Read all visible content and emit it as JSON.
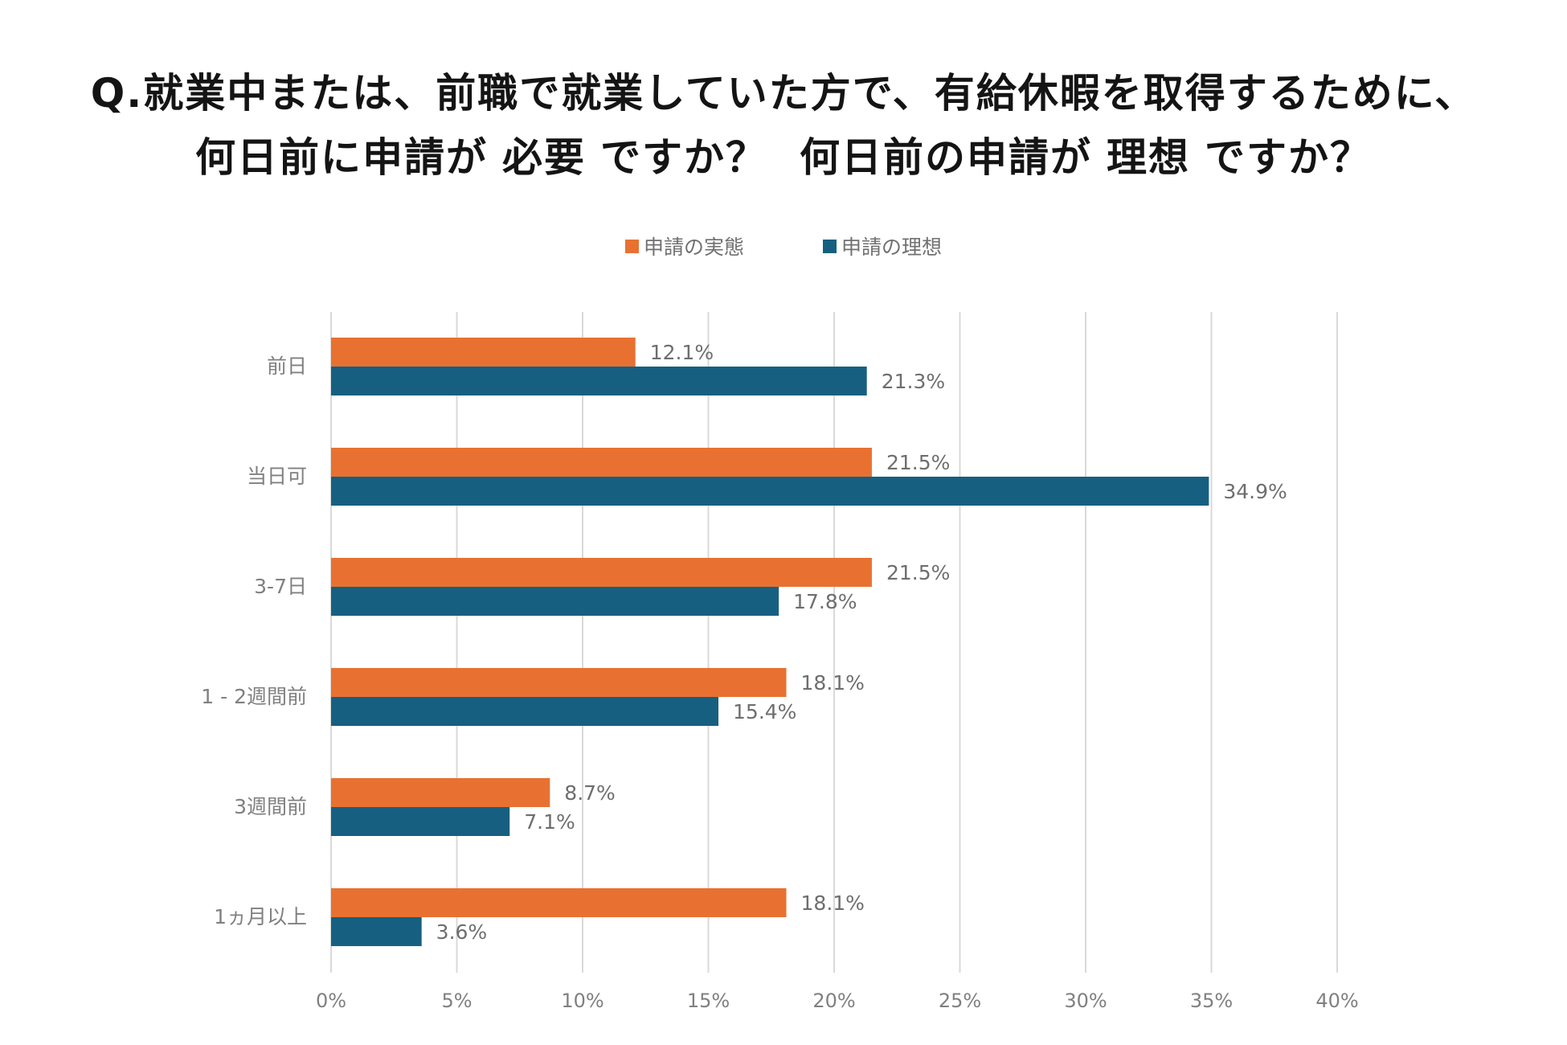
{
  "header": {
    "line1": "Q.就業中または、前職で就業していた方で、有給休暇を取得するために、",
    "line2_a": "何日前に申請が",
    "line2_hl1": "必要",
    "line2_b": "ですか？",
    "line2_c": "何日前の申請が",
    "line2_hl2": "理想",
    "line2_d": "ですか？"
  },
  "colors": {
    "actual": "#e87131",
    "ideal": "#175f80",
    "grid": "#d9d9d9"
  },
  "chart_data": {
    "type": "bar",
    "orientation": "horizontal",
    "categories": [
      "前日",
      "当日可",
      "3-7日",
      "1 - 2週間前",
      "3週間前",
      "1ヵ月以上"
    ],
    "series": [
      {
        "name": "申請の実態",
        "values": [
          12.1,
          21.5,
          21.5,
          18.1,
          8.7,
          18.1
        ]
      },
      {
        "name": "申請の理想",
        "values": [
          21.3,
          34.9,
          17.8,
          15.4,
          7.1,
          3.6
        ]
      }
    ],
    "value_labels": {
      "申請の実態": [
        "12.1%",
        "21.5%",
        "21.5%",
        "18.1%",
        "8.7%",
        "18.1%"
      ],
      "申請の理想": [
        "21.3%",
        "34.9%",
        "17.8%",
        "15.4%",
        "7.1%",
        "3.6%"
      ]
    },
    "xlim": [
      0,
      40
    ],
    "xticks": [
      0,
      5,
      10,
      15,
      20,
      25,
      30,
      35,
      40
    ],
    "xtick_labels": [
      "0%",
      "5%",
      "10%",
      "15%",
      "20%",
      "25%",
      "30%",
      "35%",
      "40%"
    ],
    "legend_position": "top-center",
    "grid": true
  }
}
